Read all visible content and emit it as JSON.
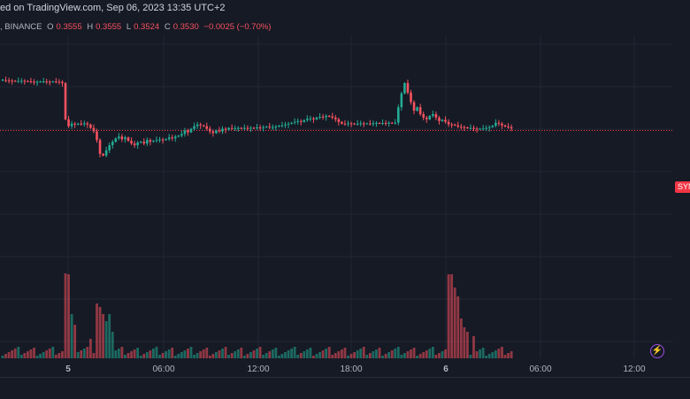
{
  "header": {
    "published": "ed on TradingView.com, Sep 06, 2023 13:35 UTC+2"
  },
  "ohlc": {
    "symbol": ", BINANCE",
    "o_label": "O",
    "o": "0.3555",
    "h_label": "H",
    "h": "0.3555",
    "l_label": "L",
    "l": "0.3524",
    "c_label": "C",
    "c": "0.3530",
    "change": "−0.0025 (−0.70%)"
  },
  "price_tag": "SYN",
  "colors": {
    "up": "#22ab94",
    "down": "#f7525f",
    "background": "#161a25",
    "grid": "#232735",
    "last_price": "#f23645"
  },
  "icons": {
    "bolt": "lightning-bolt-icon"
  },
  "chart_data": {
    "type": "candlestick",
    "x_ticks": [
      "5",
      "06:00",
      "12:00",
      "18:00",
      "6",
      "06:00",
      "12:00"
    ],
    "last_price": 0.353,
    "grid": true,
    "price_path": [
      [
        0.382,
        0.3825
      ],
      [
        0.3822,
        0.382
      ],
      [
        0.3821,
        0.3818
      ],
      [
        0.3819,
        0.3817
      ],
      [
        0.3818,
        0.3816
      ],
      [
        0.3816,
        0.3817
      ],
      [
        0.3817,
        0.3818
      ],
      [
        0.3818,
        0.3817
      ],
      [
        0.3817,
        0.3815
      ],
      [
        0.3815,
        0.3813
      ],
      [
        0.3813,
        0.381
      ],
      [
        0.381,
        0.3812
      ],
      [
        0.3812,
        0.3814
      ],
      [
        0.3814,
        0.3815
      ],
      [
        0.3815,
        0.3813
      ],
      [
        0.3813,
        0.3812
      ],
      [
        0.3812,
        0.3814
      ],
      [
        0.3814,
        0.3813
      ],
      [
        0.3813,
        0.3812
      ],
      [
        0.3812,
        0.3805
      ],
      [
        0.3805,
        0.3595
      ],
      [
        0.3595,
        0.3555
      ],
      [
        0.3555,
        0.357
      ],
      [
        0.357,
        0.3565
      ],
      [
        0.3565,
        0.357
      ],
      [
        0.357,
        0.3568
      ],
      [
        0.3568,
        0.3572
      ],
      [
        0.3572,
        0.3565
      ],
      [
        0.3565,
        0.3545
      ],
      [
        0.3545,
        0.3525
      ],
      [
        0.3525,
        0.3475
      ],
      [
        0.3475,
        0.3395
      ],
      [
        0.3395,
        0.3385
      ],
      [
        0.3385,
        0.3415
      ],
      [
        0.3415,
        0.3445
      ],
      [
        0.3445,
        0.3465
      ],
      [
        0.3465,
        0.3485
      ],
      [
        0.3485,
        0.3495
      ],
      [
        0.3495,
        0.348
      ],
      [
        0.348,
        0.349
      ],
      [
        0.349,
        0.347
      ],
      [
        0.347,
        0.3455
      ],
      [
        0.3455,
        0.3445
      ],
      [
        0.3445,
        0.346
      ],
      [
        0.346,
        0.3465
      ],
      [
        0.3465,
        0.3455
      ],
      [
        0.3455,
        0.3475
      ],
      [
        0.3475,
        0.3465
      ],
      [
        0.3465,
        0.347
      ],
      [
        0.347,
        0.3475
      ],
      [
        0.3475,
        0.3478
      ],
      [
        0.3478,
        0.3475
      ],
      [
        0.3475,
        0.348
      ],
      [
        0.348,
        0.349
      ],
      [
        0.349,
        0.3485
      ],
      [
        0.3485,
        0.3495
      ],
      [
        0.3495,
        0.35
      ],
      [
        0.35,
        0.351
      ],
      [
        0.351,
        0.353
      ],
      [
        0.353,
        0.352
      ],
      [
        0.352,
        0.354
      ],
      [
        0.354,
        0.3555
      ],
      [
        0.3555,
        0.3565
      ],
      [
        0.3565,
        0.356
      ],
      [
        0.356,
        0.3555
      ],
      [
        0.3555,
        0.354
      ],
      [
        0.354,
        0.3525
      ],
      [
        0.3525,
        0.3515
      ],
      [
        0.3515,
        0.353
      ],
      [
        0.353,
        0.3525
      ],
      [
        0.3525,
        0.354
      ],
      [
        0.354,
        0.3535
      ],
      [
        0.3535,
        0.3545
      ],
      [
        0.3545,
        0.3543
      ],
      [
        0.3543,
        0.3544
      ],
      [
        0.3544,
        0.3545
      ],
      [
        0.3545,
        0.3542
      ],
      [
        0.3542,
        0.3545
      ],
      [
        0.3545,
        0.3543
      ],
      [
        0.3543,
        0.3546
      ],
      [
        0.3546,
        0.3544
      ],
      [
        0.3544,
        0.3548
      ],
      [
        0.3548,
        0.3545
      ],
      [
        0.3545,
        0.355
      ],
      [
        0.355,
        0.3553
      ],
      [
        0.3553,
        0.3548
      ],
      [
        0.3548,
        0.355
      ],
      [
        0.355,
        0.3553
      ],
      [
        0.3553,
        0.3558
      ],
      [
        0.3558,
        0.356
      ],
      [
        0.356,
        0.3565
      ],
      [
        0.3565,
        0.357
      ],
      [
        0.357,
        0.3575
      ],
      [
        0.3575,
        0.358
      ],
      [
        0.358,
        0.3585
      ],
      [
        0.3585,
        0.358
      ],
      [
        0.358,
        0.359
      ],
      [
        0.359,
        0.3598
      ],
      [
        0.3598,
        0.36
      ],
      [
        0.36,
        0.3595
      ],
      [
        0.3595,
        0.3605
      ],
      [
        0.3605,
        0.361
      ],
      [
        0.361,
        0.3608
      ],
      [
        0.3608,
        0.3615
      ],
      [
        0.3615,
        0.3612
      ],
      [
        0.3612,
        0.3605
      ],
      [
        0.3605,
        0.3595
      ],
      [
        0.3595,
        0.358
      ],
      [
        0.358,
        0.357
      ],
      [
        0.357,
        0.3568
      ],
      [
        0.3568,
        0.3572
      ],
      [
        0.3572,
        0.357
      ],
      [
        0.357,
        0.3568
      ],
      [
        0.3568,
        0.357
      ],
      [
        0.357,
        0.3572
      ],
      [
        0.3572,
        0.357
      ],
      [
        0.357,
        0.3571
      ],
      [
        0.3571,
        0.3569
      ],
      [
        0.3569,
        0.3572
      ],
      [
        0.3572,
        0.3574
      ],
      [
        0.3574,
        0.3572
      ],
      [
        0.3572,
        0.3574
      ],
      [
        0.3574,
        0.3573
      ],
      [
        0.3573,
        0.3575
      ],
      [
        0.3575,
        0.3574
      ],
      [
        0.3574,
        0.3576
      ],
      [
        0.3576,
        0.3665
      ],
      [
        0.3665,
        0.3745
      ],
      [
        0.3745,
        0.3805
      ],
      [
        0.3805,
        0.375
      ],
      [
        0.375,
        0.3695
      ],
      [
        0.3695,
        0.3645
      ],
      [
        0.3645,
        0.3665
      ],
      [
        0.3665,
        0.3625
      ],
      [
        0.3625,
        0.3605
      ],
      [
        0.3605,
        0.3595
      ],
      [
        0.3595,
        0.3615
      ],
      [
        0.3615,
        0.3625
      ],
      [
        0.3625,
        0.3605
      ],
      [
        0.3605,
        0.3585
      ],
      [
        0.3585,
        0.3592
      ],
      [
        0.3592,
        0.358
      ],
      [
        0.358,
        0.3566
      ],
      [
        0.3566,
        0.3565
      ],
      [
        0.3565,
        0.356
      ],
      [
        0.356,
        0.3553
      ],
      [
        0.3553,
        0.355
      ],
      [
        0.355,
        0.3548
      ],
      [
        0.3548,
        0.3545
      ],
      [
        0.3545,
        0.3545
      ],
      [
        0.3545,
        0.3542
      ],
      [
        0.3542,
        0.3538
      ],
      [
        0.3538,
        0.354
      ],
      [
        0.354,
        0.3542
      ],
      [
        0.3542,
        0.3545
      ],
      [
        0.3545,
        0.355
      ],
      [
        0.355,
        0.3558
      ],
      [
        0.3558,
        0.3575
      ],
      [
        0.3575,
        0.357
      ],
      [
        0.357,
        0.356
      ],
      [
        0.356,
        0.3553
      ],
      [
        0.3553,
        0.355
      ],
      [
        0.355,
        0.3542
      ]
    ]
  }
}
